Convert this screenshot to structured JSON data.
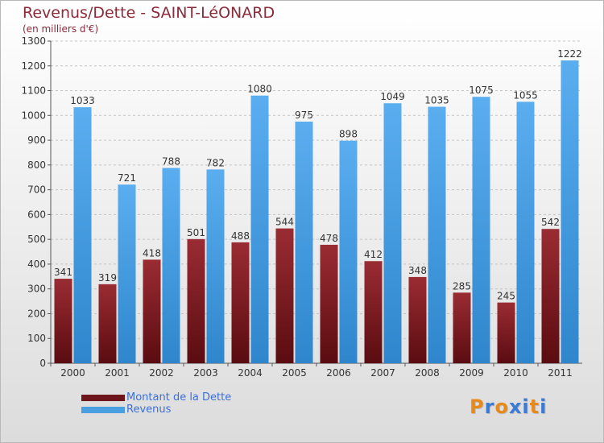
{
  "title": "Revenus/Dette - SAINT-LéONARD",
  "subtitle": "(en milliers d'€)",
  "logo_text": "Proxiti",
  "logo_colors": [
    "#e8891c",
    "#3b7bd6",
    "#e8891c",
    "#3b7bd6",
    "#3b7bd6",
    "#e8891c",
    "#3b7bd6"
  ],
  "chart_data": {
    "type": "bar",
    "categories": [
      "2000",
      "2001",
      "2002",
      "2003",
      "2004",
      "2005",
      "2006",
      "2007",
      "2008",
      "2009",
      "2010",
      "2011"
    ],
    "series": [
      {
        "name": "Montant de la Dette",
        "color": "#7a1e22",
        "values": [
          341,
          319,
          418,
          501,
          488,
          544,
          478,
          412,
          348,
          285,
          245,
          542
        ]
      },
      {
        "name": "Revenus",
        "color": "#4a9fe0",
        "values": [
          1033,
          721,
          788,
          782,
          1080,
          975,
          898,
          1049,
          1035,
          1075,
          1055,
          1222
        ]
      }
    ],
    "ylim": [
      0,
      1300
    ],
    "yticks": [
      0,
      100,
      200,
      300,
      400,
      500,
      600,
      700,
      800,
      900,
      1000,
      1100,
      1200,
      1300
    ],
    "grid": "horizontal dashed",
    "legend_position": "bottom-left"
  }
}
